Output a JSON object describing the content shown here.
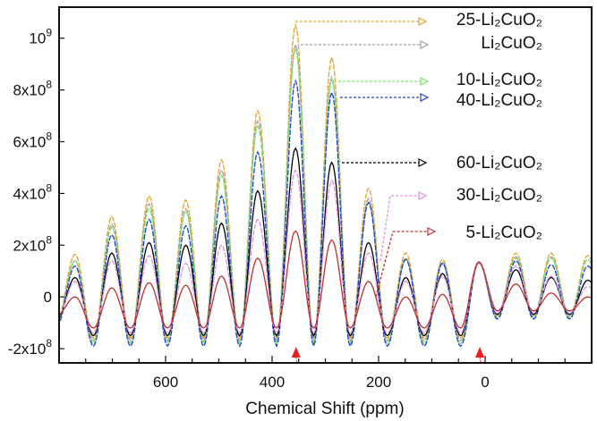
{
  "chart_data": {
    "type": "line",
    "title": "",
    "xlabel": "Chemical Shift (ppm)",
    "ylabel": "",
    "xlim": [
      800,
      -200
    ],
    "x_reversed": true,
    "ylim": [
      -255000000.0,
      1120000000.0
    ],
    "x_ticks": [
      600,
      400,
      200,
      0
    ],
    "x_tick_labels": [
      "600",
      "400",
      "200",
      "0"
    ],
    "y_ticks": [
      -200000000.0,
      0,
      200000000.0,
      400000000.0,
      600000000.0,
      800000000.0,
      1000000000.0
    ],
    "y_tick_labels": [
      {
        "base": "-2x10",
        "exp": "8"
      },
      {
        "base": "0",
        "exp": ""
      },
      {
        "base": "2x10",
        "exp": "8"
      },
      {
        "base": "4x10",
        "exp": "8"
      },
      {
        "base": "6x10",
        "exp": "8"
      },
      {
        "base": "8x10",
        "exp": "8"
      },
      {
        "base": "10",
        "exp": "9"
      }
    ],
    "grid": false,
    "legend": "right, arrow-annotated",
    "peak_positions_ppm": [
      770,
      701,
      631,
      562,
      495,
      427,
      356,
      288,
      219,
      149,
      80,
      12,
      -58,
      -124,
      -193
    ],
    "markers_ppm": [
      355,
      10
    ],
    "marker_color": "#e82020",
    "series": [
      {
        "name": "25-Li₂CuO₂",
        "color": "#e8a030",
        "trough": -160000000.0,
        "peak_heights": [
          165000000.0,
          310000000.0,
          390000000.0,
          375000000.0,
          530000000.0,
          720000000.0,
          1050000000.0,
          925000000.0,
          420000000.0,
          170000000.0,
          145000000.0,
          135000000.0,
          170000000.0,
          170000000.0,
          160000000.0
        ]
      },
      {
        "name": "Li₂CuO₂",
        "color": "#a0a0a0",
        "trough": -170000000.0,
        "peak_heights": [
          140000000.0,
          280000000.0,
          360000000.0,
          340000000.0,
          490000000.0,
          680000000.0,
          975000000.0,
          850000000.0,
          380000000.0,
          150000000.0,
          135000000.0,
          130000000.0,
          155000000.0,
          155000000.0,
          145000000.0
        ]
      },
      {
        "name": "10-Li₂CuO₂",
        "color": "#7ee070",
        "trough": -180000000.0,
        "peak_heights": [
          140000000.0,
          270000000.0,
          340000000.0,
          330000000.0,
          470000000.0,
          660000000.0,
          960000000.0,
          840000000.0,
          365000000.0,
          145000000.0,
          130000000.0,
          130000000.0,
          150000000.0,
          150000000.0,
          145000000.0
        ]
      },
      {
        "name": "40-Li₂CuO₂",
        "color": "#2040d0",
        "trough": -190000000.0,
        "peak_heights": [
          120000000.0,
          240000000.0,
          300000000.0,
          275000000.0,
          390000000.0,
          560000000.0,
          835000000.0,
          790000000.0,
          365000000.0,
          145000000.0,
          130000000.0,
          135000000.0,
          140000000.0,
          125000000.0,
          120000000.0
        ]
      },
      {
        "name": "60-Li₂CuO₂",
        "color": "#000000",
        "trough": -150000000.0,
        "peak_heights": [
          75000000.0,
          170000000.0,
          210000000.0,
          200000000.0,
          285000000.0,
          410000000.0,
          575000000.0,
          520000000.0,
          210000000.0,
          75000000.0,
          90000000.0,
          135000000.0,
          105000000.0,
          75000000.0,
          65000000.0
        ]
      },
      {
        "name": "30-Li₂CuO₂",
        "color": "#e090e0",
        "trough": -140000000.0,
        "peak_heights": [
          60000000.0,
          140000000.0,
          160000000.0,
          130000000.0,
          200000000.0,
          300000000.0,
          490000000.0,
          450000000.0,
          170000000.0,
          60000000.0,
          80000000.0,
          130000000.0,
          120000000.0,
          80000000.0,
          40000000.0
        ]
      },
      {
        "name": "5-Li₂CuO₂",
        "color": "#c03030",
        "trough": -120000000.0,
        "peak_heights": [
          0,
          35000000.0,
          55000000.0,
          45000000.0,
          80000000.0,
          150000000.0,
          255000000.0,
          220000000.0,
          60000000.0,
          0,
          10000000.0,
          135000000.0,
          50000000.0,
          15000000.0,
          0
        ]
      }
    ]
  }
}
